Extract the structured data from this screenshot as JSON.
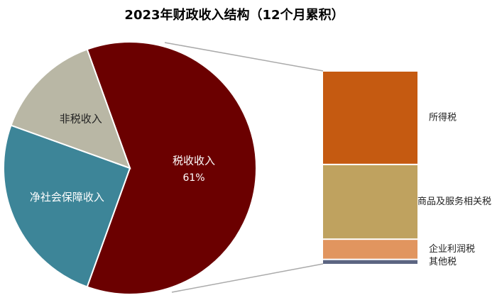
{
  "chart_data": [
    {
      "type": "pie",
      "title": "2023年财政收入结构（12个月累积）",
      "categories": [
        "税收收入",
        "净社会保障收入",
        "非税收入"
      ],
      "values": [
        61,
        25,
        14
      ],
      "value_labels": [
        "61%",
        null,
        null
      ],
      "colors": [
        "#6b0000",
        "#3d8598",
        "#b9b7a5"
      ]
    },
    {
      "type": "bar",
      "stacked": true,
      "series": [
        {
          "name": "所得税",
          "color": "#c55a11",
          "values": [
            49
          ]
        },
        {
          "name": "商品及服务相关税",
          "color": "#bfa25f",
          "values": [
            39
          ]
        },
        {
          "name": "企业利润税",
          "color": "#e1955f",
          "values": [
            10
          ]
        },
        {
          "name": "其他税",
          "color": "#5c6582",
          "values": [
            2
          ]
        }
      ]
    }
  ]
}
